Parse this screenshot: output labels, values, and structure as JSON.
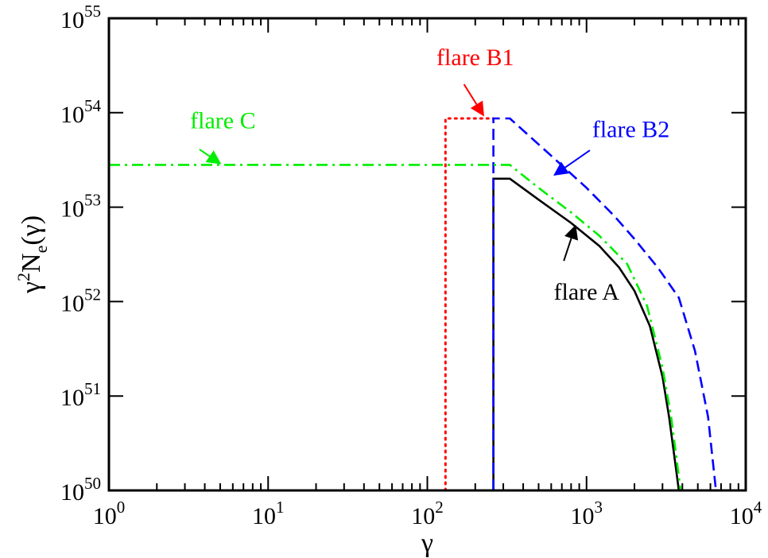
{
  "chart_data": {
    "type": "line",
    "title": "",
    "xlabel": "γ",
    "ylabel": {
      "base": "γ",
      "sup": "2",
      "main": "N",
      "sub": "e",
      "tail": "(γ)"
    },
    "xscale": "log",
    "yscale": "log",
    "xlim": [
      1,
      10000
    ],
    "ylim": [
      1e+50,
      1e+55
    ],
    "grid": false,
    "x_ticks": [
      {
        "value": 1,
        "base": "10",
        "exp": "0"
      },
      {
        "value": 10,
        "base": "10",
        "exp": "1"
      },
      {
        "value": 100,
        "base": "10",
        "exp": "2"
      },
      {
        "value": 1000,
        "base": "10",
        "exp": "3"
      },
      {
        "value": 10000,
        "base": "10",
        "exp": "4"
      }
    ],
    "y_ticks": [
      {
        "value": 1e+50,
        "base": "10",
        "exp": "50"
      },
      {
        "value": 1e+51,
        "base": "10",
        "exp": "51"
      },
      {
        "value": 1e+52,
        "base": "10",
        "exp": "52"
      },
      {
        "value": 1e+53,
        "base": "10",
        "exp": "53"
      },
      {
        "value": 1e+54,
        "base": "10",
        "exp": "54"
      },
      {
        "value": 1e+55,
        "base": "10",
        "exp": "55"
      }
    ],
    "series": [
      {
        "name": "flare A",
        "color": "#000000",
        "dash": "solid",
        "x": [
          260,
          260,
          330,
          500,
          800,
          1200,
          1600,
          2000,
          2500,
          3000,
          3300,
          3600,
          3800
        ],
        "y": [
          1e+50,
          2e+53,
          2e+53,
          1.2e+53,
          6.8e+52,
          3.9e+52,
          2.3e+52,
          1.3e+52,
          5.5e+51,
          1.6e+51,
          6e+50,
          2e+50,
          1e+50
        ]
      },
      {
        "name": "flare B1",
        "color": "#ff0000",
        "dash": "dotted",
        "x": [
          130,
          130,
          260
        ],
        "y": [
          1e+50,
          8.7e+53,
          8.7e+53
        ]
      },
      {
        "name": "flare B2",
        "color": "#0000ff",
        "dash": "dashed",
        "x": [
          260,
          260,
          330,
          600,
          1000,
          1500,
          2000,
          2800,
          3800,
          4800,
          5800,
          6500
        ],
        "y": [
          1e+50,
          8.7e+53,
          8.7e+53,
          3.5e+53,
          1.6e+53,
          8e+52,
          4.6e+52,
          2.3e+52,
          1.1e+52,
          3e+51,
          6e+50,
          1e+50
        ]
      },
      {
        "name": "flare C",
        "color": "#00ee00",
        "dash": "dashdot",
        "x": [
          1,
          330,
          500,
          800,
          1200,
          1800,
          2400,
          3000,
          3400,
          3700,
          3900
        ],
        "y": [
          2.8e+53,
          2.8e+53,
          1.6e+53,
          8.8e+52,
          5e+52,
          2.5e+52,
          9e+51,
          2e+51,
          6e+50,
          2e+50,
          1e+50
        ]
      }
    ],
    "annotations": [
      {
        "text": "flare A",
        "color": "#000000",
        "text_x": 1000,
        "text_y": 1.05e+52,
        "arrow_from": [
          720,
          2.7e+52
        ],
        "arrow_to": [
          850,
          6.3e+52
        ]
      },
      {
        "text": "flare B1",
        "color": "#ff0000",
        "text_x": 200,
        "text_y": 3.2e+54,
        "arrow_from": [
          170,
          2e+54
        ],
        "arrow_to": [
          225,
          9.4e+53
        ]
      },
      {
        "text": "flare B2",
        "color": "#0000ff",
        "text_x": 1900,
        "text_y": 5.5e+53,
        "arrow_from": [
          1050,
          4e+53
        ],
        "arrow_to": [
          630,
          2.2e+53
        ]
      },
      {
        "text": "flare C",
        "color": "#00ee00",
        "text_x": 5.2,
        "text_y": 6.8e+53,
        "arrow_from": [
          3.7,
          4.1e+53
        ],
        "arrow_to": [
          5.0,
          2.9e+53
        ]
      }
    ]
  }
}
